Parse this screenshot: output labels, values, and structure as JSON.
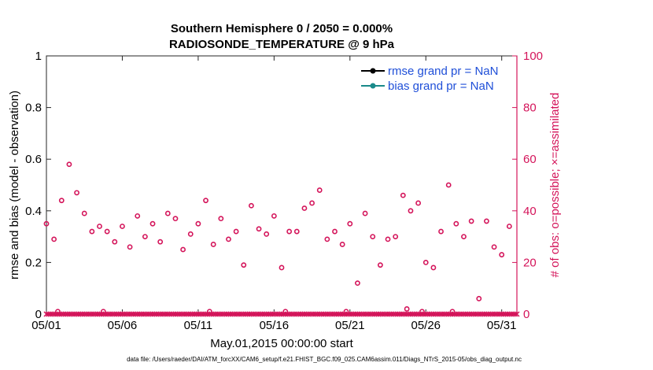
{
  "chart_data": {
    "type": "scatter",
    "title": "Southern Hemisphere 0 / 2050 = 0.000%",
    "subtitle": "RADIOSONDE_TEMPERATURE @ 9 hPa",
    "xlabel": "May.01,2015 00:00:00 start",
    "ylabel": "rmse and bias (model - observation)",
    "y2label": "# of obs: o=possible; ×=assimilated",
    "xlim": [
      1,
      32
    ],
    "ylim": [
      0,
      1
    ],
    "y2lim": [
      0,
      100
    ],
    "x_ticks": [
      1,
      6,
      11,
      16,
      21,
      26,
      31
    ],
    "x_tick_labels": [
      "05/01",
      "05/06",
      "05/11",
      "05/16",
      "05/21",
      "05/26",
      "05/31"
    ],
    "y_ticks": [
      0,
      0.2,
      0.4,
      0.6,
      0.8,
      1
    ],
    "y_tick_labels": [
      "0",
      "0.2",
      "0.4",
      "0.6",
      "0.8",
      "1"
    ],
    "y2_ticks": [
      0,
      20,
      40,
      60,
      80,
      100
    ],
    "y2_tick_labels": [
      "0",
      "20",
      "40",
      "60",
      "80",
      "100"
    ],
    "legend": [
      {
        "label": "rmse grand pr = NaN",
        "color": "#000000"
      },
      {
        "label": "bias grand pr = NaN",
        "color": "#1a8a8a"
      }
    ],
    "legend_position": "top-right",
    "series": [
      {
        "name": "possible",
        "marker": "circle",
        "color": "#d4145a",
        "points": [
          [
            1.0,
            35
          ],
          [
            1.5,
            29
          ],
          [
            1.75,
            1
          ],
          [
            2.0,
            44
          ],
          [
            2.5,
            58
          ],
          [
            3.0,
            47
          ],
          [
            3.5,
            39
          ],
          [
            4.0,
            32
          ],
          [
            4.5,
            34
          ],
          [
            4.75,
            1
          ],
          [
            5.0,
            32
          ],
          [
            5.5,
            28
          ],
          [
            6.0,
            34
          ],
          [
            6.5,
            26
          ],
          [
            7.0,
            38
          ],
          [
            7.5,
            30
          ],
          [
            8.0,
            35
          ],
          [
            8.5,
            28
          ],
          [
            9.0,
            39
          ],
          [
            9.5,
            37
          ],
          [
            10.0,
            25
          ],
          [
            10.5,
            31
          ],
          [
            11.0,
            35
          ],
          [
            11.5,
            44
          ],
          [
            11.75,
            1
          ],
          [
            12.0,
            27
          ],
          [
            12.5,
            37
          ],
          [
            13.0,
            29
          ],
          [
            13.5,
            32
          ],
          [
            14.0,
            19
          ],
          [
            14.5,
            42
          ],
          [
            15.0,
            33
          ],
          [
            15.5,
            31
          ],
          [
            16.0,
            38
          ],
          [
            16.5,
            18
          ],
          [
            16.75,
            1
          ],
          [
            17.0,
            32
          ],
          [
            17.5,
            32
          ],
          [
            18.0,
            41
          ],
          [
            18.5,
            43
          ],
          [
            19.0,
            48
          ],
          [
            19.5,
            29
          ],
          [
            20.0,
            32
          ],
          [
            20.5,
            27
          ],
          [
            20.75,
            1
          ],
          [
            21.0,
            35
          ],
          [
            21.5,
            12
          ],
          [
            22.0,
            39
          ],
          [
            22.5,
            30
          ],
          [
            23.0,
            19
          ],
          [
            23.5,
            29
          ],
          [
            24.0,
            30
          ],
          [
            24.5,
            46
          ],
          [
            24.75,
            2
          ],
          [
            25.0,
            40
          ],
          [
            25.5,
            43
          ],
          [
            25.75,
            1
          ],
          [
            26.0,
            20
          ],
          [
            26.5,
            18
          ],
          [
            27.0,
            32
          ],
          [
            27.5,
            50
          ],
          [
            27.75,
            1
          ],
          [
            28.0,
            35
          ],
          [
            28.5,
            30
          ],
          [
            29.0,
            36
          ],
          [
            29.5,
            6
          ],
          [
            30.0,
            36
          ],
          [
            30.5,
            26
          ],
          [
            31.0,
            23
          ],
          [
            31.5,
            34
          ]
        ]
      },
      {
        "name": "assimilated",
        "marker": "x",
        "color": "#d4145a",
        "value_all": 0,
        "x_start": 1,
        "x_end": 32,
        "x_step": 0.125
      }
    ]
  },
  "footer": "data file: /Users/raeder/DAI/ATM_forcXX/CAM6_setup/f.e21.FHIST_BGC.f09_025.CAM6assim.011/Diags_NTrS_2015-05/obs_diag_output.nc"
}
